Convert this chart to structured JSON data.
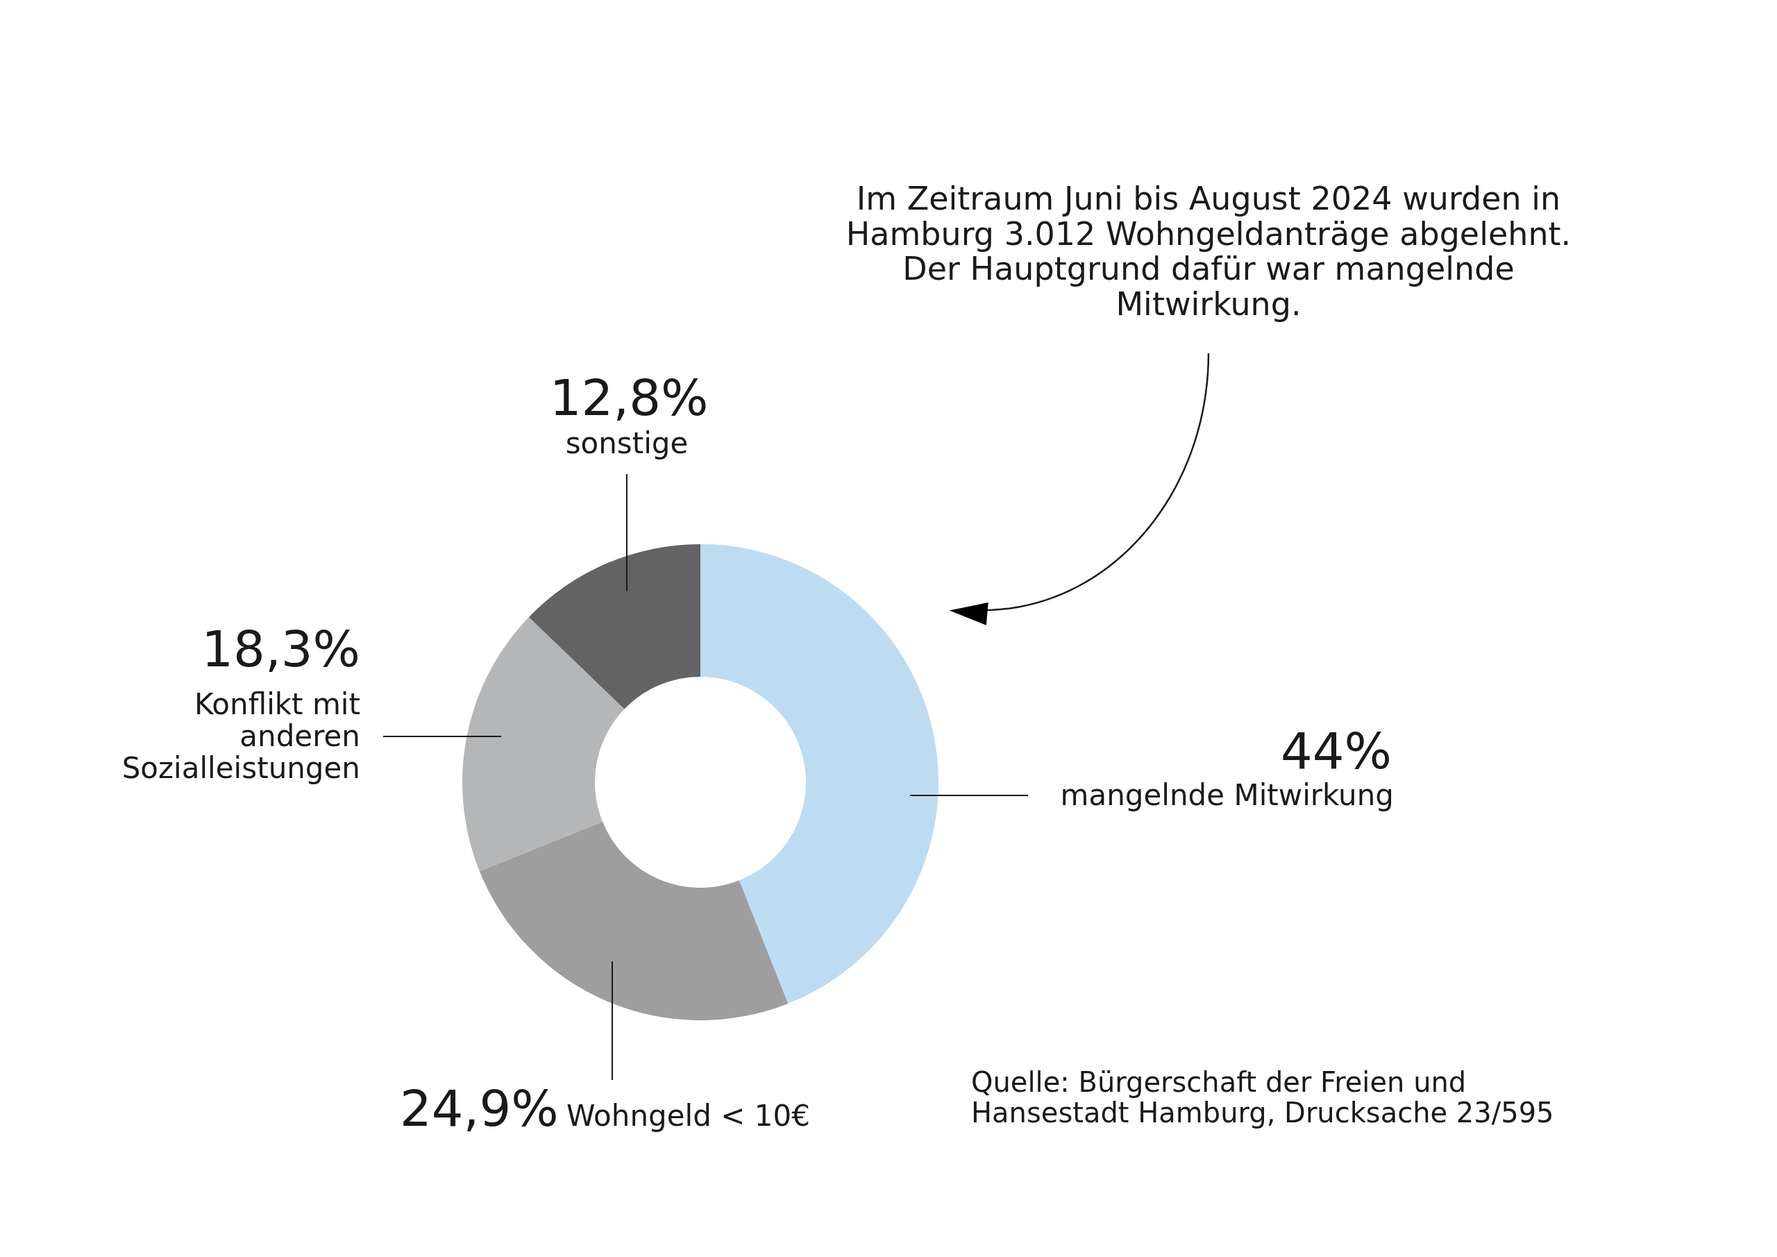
{
  "chart_data": {
    "type": "donut",
    "categories": [
      "mangelnde Mitwirkung",
      "Wohngeld < 10€",
      "Konflikt mit anderen Sozialleistungen",
      "sonstige"
    ],
    "values": [
      44,
      24.9,
      18.3,
      12.8
    ],
    "colors": [
      "#bddcf2",
      "#9e9e9e",
      "#b5b6b8",
      "#636363"
    ],
    "value_labels": [
      "44%",
      "24,9%",
      "18,3%",
      "12,8%"
    ],
    "annotations": [
      "Im Zeitraum Juni bis August 2024 wurden in Hamburg 3.012 Wohngeldanträge abgelehnt. Der Hauptgrund dafür war mangelnde Mitwirkung.",
      "Quelle: Bürgerschaft der Freien und Hansestadt Hamburg, Drucksache 23/595"
    ]
  }
}
